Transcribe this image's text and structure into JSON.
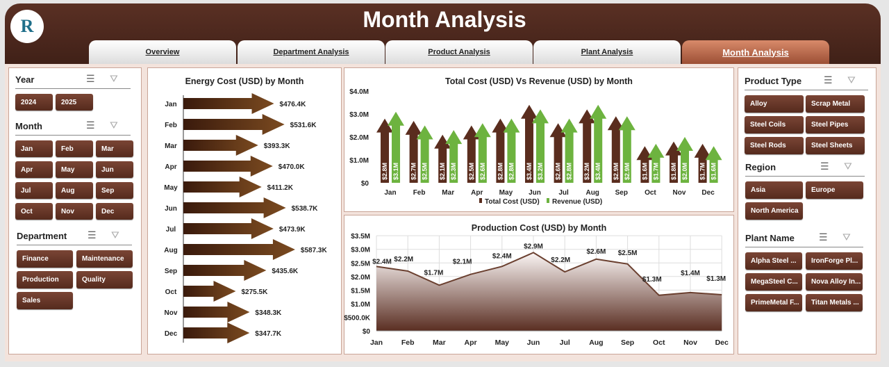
{
  "header": {
    "title": "Month Analysis",
    "logo_text": "R"
  },
  "tabs": [
    {
      "label": "Overview"
    },
    {
      "label": "Department Analysis"
    },
    {
      "label": "Product Analysis"
    },
    {
      "label": "Plant Analysis"
    },
    {
      "label": "Month Analysis",
      "active": true
    }
  ],
  "left": {
    "year": {
      "title": "Year",
      "items": [
        "2024",
        "2025"
      ]
    },
    "month": {
      "title": "Month",
      "items": [
        "Jan",
        "Feb",
        "Mar",
        "Apr",
        "May",
        "Jun",
        "Jul",
        "Aug",
        "Sep",
        "Oct",
        "Nov",
        "Dec"
      ]
    },
    "department": {
      "title": "Department",
      "items": [
        "Finance",
        "Maintenance",
        "Production",
        "Quality",
        "Sales"
      ]
    }
  },
  "right": {
    "product_type": {
      "title": "Product Type",
      "items": [
        "Alloy",
        "Scrap Metal",
        "Steel Coils",
        "Steel Pipes",
        "Steel Rods",
        "Steel Sheets"
      ]
    },
    "region": {
      "title": "Region",
      "items": [
        "Asia",
        "Europe",
        "North America"
      ]
    },
    "plant": {
      "title": "Plant Name",
      "items": [
        "Alpha Steel ...",
        "IronForge Pl...",
        "MegaSteel C...",
        "Nova Alloy In...",
        "PrimeMetal F...",
        "Titan Metals ..."
      ]
    }
  },
  "icons": {
    "multiselect": "multi-select-icon",
    "clear_filter": "clear-filter-icon"
  },
  "colors": {
    "brown": "#5a2d1e",
    "green": "#6db33f",
    "header": "#4d2a1e"
  },
  "chart_data": [
    {
      "type": "bar",
      "orientation": "horizontal",
      "title": "Energy Cost (USD) by Month",
      "categories": [
        "Jan",
        "Feb",
        "Mar",
        "Apr",
        "May",
        "Jun",
        "Jul",
        "Aug",
        "Sep",
        "Oct",
        "Nov",
        "Dec"
      ],
      "values": [
        476.4,
        531.6,
        393.3,
        470.0,
        411.2,
        538.7,
        473.9,
        587.3,
        435.6,
        275.5,
        348.3,
        347.7
      ],
      "labels": [
        "$476.4K",
        "$531.6K",
        "$393.3K",
        "$470.0K",
        "$411.2K",
        "$538.7K",
        "$473.9K",
        "$587.3K",
        "$435.6K",
        "$275.5K",
        "$348.3K",
        "$347.7K"
      ]
    },
    {
      "type": "bar",
      "title": "Total Cost (USD) Vs Revenue (USD) by Month",
      "categories": [
        "Jan",
        "Feb",
        "Mar",
        "Apr",
        "May",
        "Jun",
        "Jul",
        "Aug",
        "Sep",
        "Oct",
        "Nov",
        "Dec"
      ],
      "ylim": [
        0,
        4
      ],
      "yticks": [
        "$0",
        "$1.0M",
        "$2.0M",
        "$3.0M",
        "$4.0M"
      ],
      "legend": "bottom",
      "series": [
        {
          "name": "Total Cost (USD)",
          "color": "#5a2d1e",
          "values": [
            2.8,
            2.7,
            2.1,
            2.5,
            2.8,
            3.4,
            2.6,
            3.2,
            2.9,
            1.6,
            1.8,
            1.7
          ],
          "labels": [
            "$2.8M",
            "$2.7M",
            "$2.1M",
            "$2.5M",
            "$2.8M",
            "$3.4M",
            "$2.6M",
            "$3.2M",
            "$2.9M",
            "$1.6M",
            "$1.8M",
            "$1.7M"
          ]
        },
        {
          "name": "Revenue (USD)",
          "color": "#6db33f",
          "values": [
            3.1,
            2.5,
            2.3,
            2.6,
            2.8,
            3.2,
            2.8,
            3.4,
            2.9,
            1.7,
            2.0,
            1.6
          ],
          "labels": [
            "$3.1M",
            "$2.5M",
            "$2.3M",
            "$2.6M",
            "$2.8M",
            "$3.2M",
            "$2.8M",
            "$3.4M",
            "$2.9M",
            "$1.7M",
            "$2.0M",
            "$1.6M"
          ]
        }
      ]
    },
    {
      "type": "area",
      "title": "Production Cost (USD) by Month",
      "categories": [
        "Jan",
        "Feb",
        "Mar",
        "Apr",
        "May",
        "Jun",
        "Jul",
        "Aug",
        "Sep",
        "Oct",
        "Nov",
        "Dec"
      ],
      "ylim": [
        0,
        3.5
      ],
      "yticks": [
        "$0",
        "$500.0K",
        "$1.0M",
        "$1.5M",
        "$2.0M",
        "$2.5M",
        "$3.0M",
        "$3.5M"
      ],
      "grid": true,
      "values": [
        2.37,
        2.2,
        1.68,
        2.08,
        2.37,
        2.88,
        2.17,
        2.64,
        2.46,
        1.31,
        1.41,
        1.33
      ],
      "labels": [
        "$2.4M",
        "$2.2M",
        "$1.7M",
        "$2.1M",
        "$2.4M",
        "$2.9M",
        "$2.2M",
        "$2.6M",
        "$2.5M",
        "$1.3M",
        "$1.4M",
        "$1.3M"
      ]
    }
  ]
}
